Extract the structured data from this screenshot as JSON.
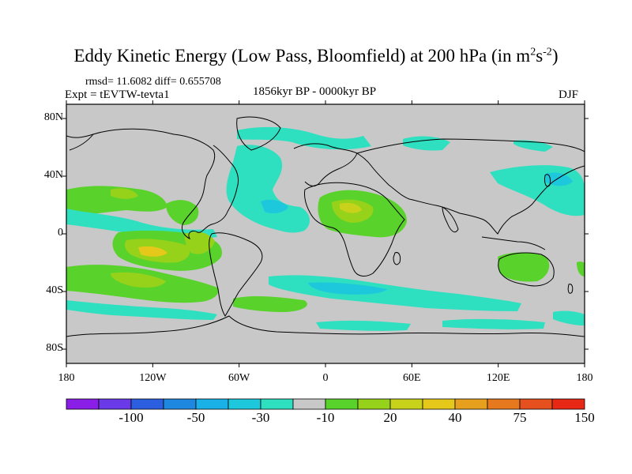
{
  "title": {
    "main": "Eddy Kinetic Energy (Low Pass, Bloomfield) at 200 hPa (in m",
    "sup1": "2",
    "mid": "s",
    "sup2": "-2",
    "end": ")"
  },
  "stats_line": "rmsd= 11.6082  diff= 0.655708",
  "expt_line": "Expt = tEVTW-tevta1",
  "period_line": "1856kyr BP - 0000kyr BP",
  "season_line": "DJF",
  "axes": {
    "x_ticks": [
      "180",
      "120W",
      "60W",
      "0",
      "60E",
      "120E",
      "180"
    ],
    "y_ticks": [
      "80N",
      "40N",
      "0",
      "40S",
      "80S"
    ]
  },
  "colorbar": {
    "colors": [
      "#8a1ee6",
      "#6a3ae8",
      "#2c5fe0",
      "#1e88e0",
      "#1ab0e8",
      "#1ec8dc",
      "#2ee0c0",
      "#c8c8c8",
      "#5ad22c",
      "#96d21a",
      "#c8d21a",
      "#e6c81a",
      "#e6a01e",
      "#e6781e",
      "#e6501e",
      "#e62814"
    ],
    "labels": [
      "-100",
      "-50",
      "-30",
      "-10",
      "20",
      "40",
      "75",
      "150"
    ]
  },
  "colors": {
    "land_background": "#c8c8c8",
    "coast": "#000000"
  }
}
